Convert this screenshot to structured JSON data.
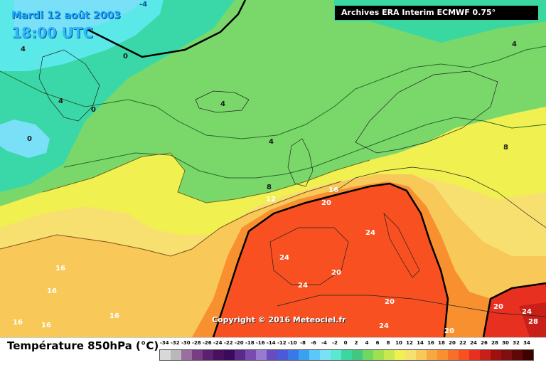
{
  "header": {
    "date": "Mardi 12 août 2003",
    "time": "18:00 UTC",
    "source": "Archives ERA Interim ECMWF 0.75°"
  },
  "copyright": "Copyright © 2016 Meteociel.fr",
  "legend": {
    "title": "Température 850hPa (°C)",
    "ticks": [
      "-34",
      "-32",
      "-30",
      "-28",
      "-26",
      "-24",
      "-22",
      "-20",
      "-18",
      "-16",
      "-14",
      "-12",
      "-10",
      "-8",
      "-6",
      "-4",
      "-2",
      "0",
      "2",
      "4",
      "6",
      "8",
      "10",
      "12",
      "14",
      "16",
      "18",
      "20",
      "22",
      "24",
      "26",
      "28",
      "30",
      "32",
      "34"
    ],
    "colors": [
      "#d8d8d8",
      "#b8b8b8",
      "#9a6ea0",
      "#7a3c82",
      "#5c2070",
      "#4a1060",
      "#3c0a5a",
      "#5a2a8a",
      "#7a4ab0",
      "#9a7ad0",
      "#6a4ac0",
      "#4a5ad8",
      "#3a78e8",
      "#3aa0f0",
      "#5ac8f8",
      "#7ae0f8",
      "#5ae8d0",
      "#3ad8a0",
      "#40c880",
      "#70d860",
      "#a0e050",
      "#c8e850",
      "#f0f050",
      "#f8e070",
      "#f8c858",
      "#f8a840",
      "#f89030",
      "#f87028",
      "#f85020",
      "#e83020",
      "#c82018",
      "#a01010",
      "#801010",
      "#600808",
      "#400000"
    ]
  },
  "contour_labels": [
    {
      "text": "-4",
      "kind": "cold"
    },
    {
      "text": "0",
      "kind": "cold"
    },
    {
      "text": "0",
      "kind": "cold"
    },
    {
      "text": "0",
      "kind": "cold"
    },
    {
      "text": "4",
      "kind": "dark"
    },
    {
      "text": "4",
      "kind": "dark"
    },
    {
      "text": "4",
      "kind": "dark"
    },
    {
      "text": "4",
      "kind": "dark"
    },
    {
      "text": "4",
      "kind": "dark"
    },
    {
      "text": "8",
      "kind": "dark"
    },
    {
      "text": "8",
      "kind": "dark"
    },
    {
      "text": "12",
      "kind": "white"
    },
    {
      "text": "16",
      "kind": "white"
    },
    {
      "text": "16",
      "kind": "white"
    },
    {
      "text": "16",
      "kind": "white"
    },
    {
      "text": "16",
      "kind": "white"
    },
    {
      "text": "16",
      "kind": "white"
    },
    {
      "text": "16",
      "kind": "white"
    },
    {
      "text": "20",
      "kind": "white"
    },
    {
      "text": "20",
      "kind": "white"
    },
    {
      "text": "20",
      "kind": "white"
    },
    {
      "text": "20",
      "kind": "white"
    },
    {
      "text": "20",
      "kind": "white"
    },
    {
      "text": "24",
      "kind": "white"
    },
    {
      "text": "24",
      "kind": "white"
    },
    {
      "text": "24",
      "kind": "white"
    },
    {
      "text": "24",
      "kind": "white"
    },
    {
      "text": "24",
      "kind": "white"
    },
    {
      "text": "28",
      "kind": "white"
    }
  ]
}
